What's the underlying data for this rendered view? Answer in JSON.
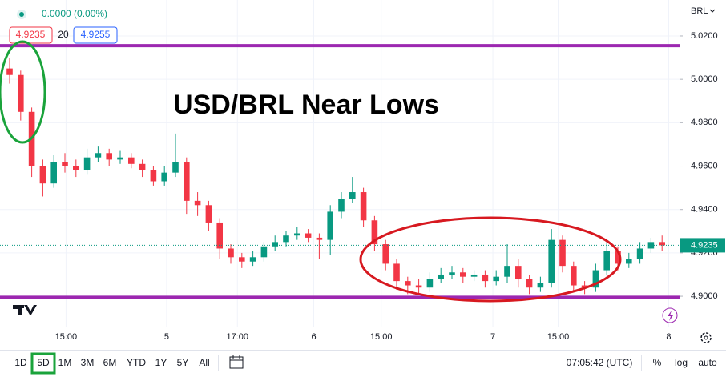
{
  "header": {
    "change": "0.0000 (0.00%)",
    "bid": "4.9235",
    "spread": "20",
    "ask": "4.9255",
    "currency": "BRL"
  },
  "chart_data": {
    "type": "candlestick",
    "title": "USD/BRL Near Lows",
    "open": [
      5.005,
      5.002,
      4.985,
      4.96,
      4.952,
      4.962,
      4.96,
      4.958,
      4.964,
      4.966,
      4.963,
      4.964,
      4.961,
      4.958,
      4.953,
      4.957,
      4.962,
      4.944,
      4.942,
      4.934,
      4.922,
      4.918,
      4.916,
      4.918,
      4.923,
      4.925,
      4.928,
      4.929,
      4.927,
      4.926,
      4.939,
      4.945,
      4.948,
      4.935,
      4.924,
      4.915,
      4.907,
      4.905,
      4.904,
      4.908,
      4.91,
      4.911,
      4.909,
      4.91,
      4.907,
      4.909,
      4.914,
      4.908,
      4.904,
      4.906,
      4.926,
      4.914,
      4.905,
      4.904,
      4.912,
      4.921,
      4.915,
      4.917,
      4.922,
      4.925
    ],
    "high": [
      5.01,
      5.004,
      4.987,
      4.963,
      4.965,
      4.966,
      4.963,
      4.968,
      4.969,
      4.968,
      4.967,
      4.966,
      4.963,
      4.96,
      4.96,
      4.975,
      4.964,
      4.948,
      4.944,
      4.936,
      4.924,
      4.92,
      4.921,
      4.925,
      4.928,
      4.93,
      4.932,
      4.931,
      4.929,
      4.942,
      4.948,
      4.955,
      4.95,
      4.937,
      4.926,
      4.917,
      4.909,
      4.908,
      4.911,
      4.913,
      4.914,
      4.913,
      4.912,
      4.912,
      4.912,
      4.924,
      4.917,
      4.91,
      4.909,
      4.931,
      4.928,
      4.916,
      4.907,
      4.915,
      4.925,
      4.923,
      4.92,
      4.925,
      4.927,
      4.928
    ],
    "low": [
      4.998,
      4.981,
      4.955,
      4.946,
      4.95,
      4.957,
      4.955,
      4.956,
      4.962,
      4.96,
      4.961,
      4.959,
      4.955,
      4.951,
      4.951,
      4.955,
      4.938,
      4.937,
      4.93,
      4.917,
      4.915,
      4.913,
      4.914,
      4.916,
      4.921,
      4.923,
      4.926,
      4.925,
      4.917,
      4.919,
      4.936,
      4.943,
      4.932,
      4.921,
      4.912,
      4.903,
      4.901,
      4.901,
      4.902,
      4.906,
      4.908,
      4.906,
      4.907,
      4.904,
      4.905,
      4.906,
      4.904,
      4.901,
      4.902,
      4.904,
      4.911,
      4.902,
      4.901,
      4.902,
      4.91,
      4.912,
      4.913,
      4.915,
      4.92,
      4.921
    ],
    "close": [
      5.002,
      4.985,
      4.96,
      4.952,
      4.962,
      4.96,
      4.958,
      4.964,
      4.966,
      4.963,
      4.964,
      4.961,
      4.958,
      4.953,
      4.957,
      4.962,
      4.944,
      4.942,
      4.934,
      4.922,
      4.918,
      4.916,
      4.918,
      4.923,
      4.925,
      4.928,
      4.929,
      4.927,
      4.926,
      4.939,
      4.945,
      4.948,
      4.935,
      4.924,
      4.915,
      4.907,
      4.905,
      4.904,
      4.908,
      4.91,
      4.911,
      4.909,
      4.91,
      4.907,
      4.909,
      4.914,
      4.908,
      4.904,
      4.906,
      4.926,
      4.914,
      4.905,
      4.904,
      4.912,
      4.921,
      4.915,
      4.917,
      4.922,
      4.925,
      4.9235
    ],
    "up_color": "#089981",
    "down_color": "#f23645",
    "xlim": [
      -0.87,
      60.58
    ],
    "xticks": [
      {
        "value": 5.1,
        "label": "15:00"
      },
      {
        "value": 14.2,
        "label": "5"
      },
      {
        "value": 20.6,
        "label": "17:00"
      },
      {
        "value": 27.5,
        "label": "6"
      },
      {
        "value": 33.6,
        "label": "15:00"
      },
      {
        "value": 43.7,
        "label": "7"
      },
      {
        "value": 49.6,
        "label": "15:00"
      },
      {
        "value": 59.6,
        "label": "8"
      }
    ],
    "ylim": [
      4.886,
      5.0366
    ],
    "yticks": [
      {
        "value": 5.02,
        "label": "5.0200"
      },
      {
        "value": 5.0,
        "label": "5.0000"
      },
      {
        "value": 4.98,
        "label": "4.9800"
      },
      {
        "value": 4.96,
        "label": "4.9600"
      },
      {
        "value": 4.94,
        "label": "4.9400"
      },
      {
        "value": 4.92,
        "label": "4.9200"
      },
      {
        "value": 4.9,
        "label": "4.9000"
      }
    ],
    "grid": true,
    "horizontal_lines": {
      "values": [
        5.0155,
        4.8995
      ],
      "color": "#9c27b0"
    },
    "last_price": 4.9235
  },
  "toolbar": {
    "ranges": [
      "1D",
      "5D",
      "1M",
      "3M",
      "6M",
      "YTD",
      "1Y",
      "5Y",
      "All"
    ],
    "time": "07:05:42 (UTC)",
    "options": [
      "%",
      "log",
      "auto"
    ]
  }
}
